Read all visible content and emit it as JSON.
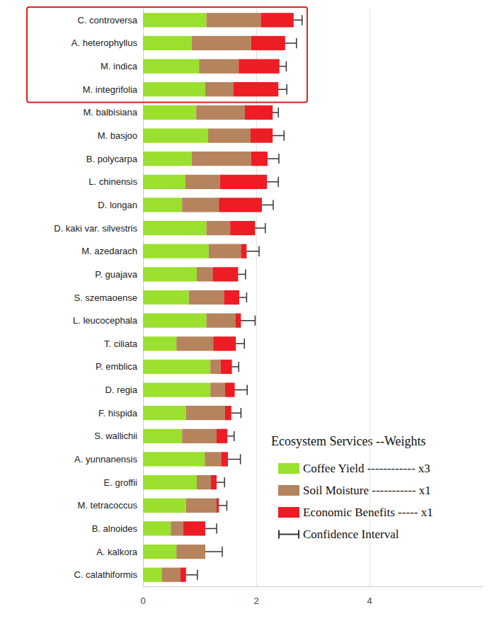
{
  "chart_data": {
    "type": "bar",
    "orientation": "horizontal",
    "stacked": true,
    "grid": true,
    "legend": "bottom-right",
    "legend_title": "Ecosystem Services --Weights",
    "categories": [
      "C. controversa",
      "A. heterophyllus",
      "M. indica",
      "M. integrifolia",
      "M. balbisiana",
      "M. basjoo",
      "B. polycarpa",
      "L. chinensis",
      "D. longan",
      "D. kaki var. silvestris",
      "M. azedarach",
      "P. guajava",
      "S. szemaoense",
      "L. leucocephala",
      "T. ciliata",
      "P. emblica",
      "D. regia",
      "F. hispida",
      "S. wallichii",
      "A. yunnanensis",
      "E. groffii",
      "M. tetracoccus",
      "B. alnoides",
      "A. kalkora",
      "C. calathiformis"
    ],
    "series": [
      {
        "name": "Coffee Yield ------------ x3",
        "color": "#9be02e",
        "values": [
          1.12,
          0.86,
          0.99,
          1.1,
          0.94,
          1.15,
          0.86,
          0.75,
          0.69,
          1.12,
          1.16,
          0.95,
          0.81,
          1.12,
          0.59,
          1.19,
          1.19,
          0.76,
          0.69,
          1.09,
          0.95,
          0.76,
          0.49,
          0.59,
          0.33
        ]
      },
      {
        "name": "Soil Moisture ----------- x1",
        "color": "#b5835e",
        "values": [
          0.96,
          1.05,
          0.7,
          0.5,
          0.86,
          0.75,
          1.05,
          0.61,
          0.65,
          0.42,
          0.57,
          0.28,
          0.62,
          0.51,
          0.65,
          0.18,
          0.26,
          0.69,
          0.61,
          0.29,
          0.25,
          0.54,
          0.22,
          0.51,
          0.33
        ]
      },
      {
        "name": "Economic Benefits ----- x1",
        "color": "#ee1c25",
        "values": [
          0.58,
          0.6,
          0.72,
          0.79,
          0.49,
          0.39,
          0.29,
          0.83,
          0.76,
          0.44,
          0.1,
          0.45,
          0.27,
          0.1,
          0.4,
          0.2,
          0.17,
          0.11,
          0.19,
          0.12,
          0.1,
          0.04,
          0.39,
          0,
          0.1
        ]
      }
    ],
    "error_bars": {
      "name": "Confidence Interval",
      "values": [
        0.15,
        0.2,
        0.12,
        0.15,
        0.1,
        0.2,
        0.2,
        0.2,
        0.2,
        0.18,
        0.22,
        0.13,
        0.13,
        0.25,
        0.15,
        0.12,
        0.22,
        0.17,
        0.12,
        0.22,
        0.14,
        0.14,
        0.2,
        0.3,
        0.2
      ]
    },
    "xlim": [
      0,
      6
    ],
    "xticks": [
      0,
      2,
      4
    ]
  }
}
